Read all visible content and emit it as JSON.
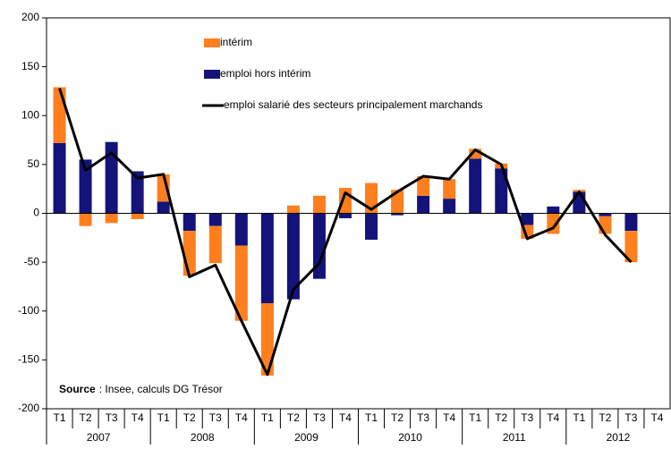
{
  "chart_data": {
    "type": "bar",
    "stacked": true,
    "categories": [
      "T1",
      "T2",
      "T3",
      "T4",
      "T1",
      "T2",
      "T3",
      "T4",
      "T1",
      "T2",
      "T3",
      "T4",
      "T1",
      "T2",
      "T3",
      "T4",
      "T1",
      "T2",
      "T3",
      "T4",
      "T1",
      "T2",
      "T3",
      "T4"
    ],
    "years": [
      "2007",
      "2008",
      "2009",
      "2010",
      "2011",
      "2012"
    ],
    "series": [
      {
        "name": "intérim",
        "color": "#ff7f1e",
        "values": [
          57,
          -13,
          -10,
          -6,
          28,
          -46,
          -38,
          -77,
          -74,
          8,
          18,
          26,
          31,
          24,
          20,
          20,
          10,
          5,
          -14,
          -21,
          2,
          -18,
          -32,
          null
        ]
      },
      {
        "name": "emploi hors intérim",
        "color": "#14137a",
        "values": [
          72,
          55,
          73,
          43,
          12,
          -18,
          -13,
          -33,
          -92,
          -88,
          -67,
          -5,
          -27,
          -2,
          18,
          15,
          56,
          46,
          -12,
          7,
          22,
          -3,
          -18,
          null
        ]
      },
      {
        "name": "emploi salarié des secteurs principalement marchands",
        "type": "line",
        "color": "#000000",
        "values": [
          128,
          44,
          62,
          36,
          40,
          -65,
          -53,
          -110,
          -165,
          -78,
          -51,
          21,
          4,
          22,
          38,
          35,
          65,
          50,
          -26,
          -15,
          22,
          -22,
          -50,
          null
        ]
      }
    ],
    "ylim": [
      -200,
      200
    ],
    "yticks": [
      -200,
      -150,
      -100,
      -50,
      0,
      50,
      100,
      150,
      200
    ],
    "source_label": "Source",
    "source_text": ": Insee, calculs DG Trésor"
  }
}
